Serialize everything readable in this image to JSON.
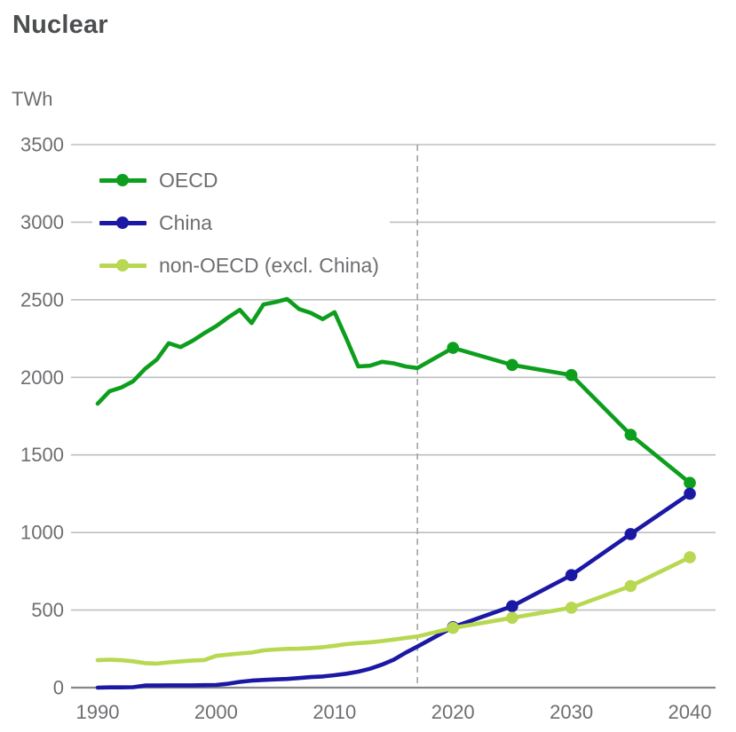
{
  "page": {
    "title": "Nuclear",
    "unit": "TWh"
  },
  "colors": {
    "oecd_green": "#0d9e1d",
    "china_blue": "#1b18a4",
    "non_oecd_light_green": "#b7d850",
    "grid_gray": "#bdbfc1",
    "axis_gray": "#85878a",
    "divider_gray": "#a0a2a5",
    "text_gray": "#6d6e71",
    "title_gray": "#4d4e50"
  },
  "chart_data": {
    "type": "line",
    "title": "Nuclear",
    "ylabel": "TWh",
    "xlabel": "",
    "xlim": [
      1990,
      2040
    ],
    "ylim": [
      0,
      3500
    ],
    "grid": true,
    "legend_position": "top-left",
    "yticks": [
      0,
      500,
      1000,
      1500,
      2000,
      2500,
      3000,
      3500
    ],
    "xticks": [
      1990,
      2000,
      2010,
      2020,
      2030,
      2040
    ],
    "divider_x": 2017,
    "x": [
      1990,
      1991,
      1992,
      1993,
      1994,
      1995,
      1996,
      1997,
      1998,
      1999,
      2000,
      2001,
      2002,
      2003,
      2004,
      2005,
      2006,
      2007,
      2008,
      2009,
      2010,
      2011,
      2012,
      2013,
      2014,
      2015,
      2016,
      2017,
      2020,
      2025,
      2030,
      2035,
      2040
    ],
    "marker_x": [
      2020,
      2025,
      2030,
      2035,
      2040
    ],
    "series": [
      {
        "name": "OECD",
        "color": "#0d9e1d",
        "values": [
          1830,
          1910,
          1935,
          1975,
          2055,
          2115,
          2220,
          2195,
          2235,
          2285,
          2330,
          2385,
          2435,
          2350,
          2470,
          2485,
          2505,
          2440,
          2415,
          2375,
          2420,
          2250,
          2070,
          2075,
          2100,
          2090,
          2070,
          2060,
          2190,
          2080,
          2015,
          1630,
          1320
        ]
      },
      {
        "name": "China",
        "color": "#1b18a4",
        "values": [
          0,
          2,
          2,
          3,
          14,
          14,
          15,
          15,
          15,
          16,
          17,
          25,
          37,
          45,
          50,
          53,
          56,
          62,
          68,
          72,
          80,
          90,
          103,
          122,
          148,
          180,
          225,
          265,
          390,
          525,
          725,
          990,
          1250
        ]
      },
      {
        "name": "non-OECD (excl. China)",
        "color": "#b7d850",
        "values": [
          177,
          180,
          177,
          170,
          158,
          155,
          163,
          169,
          175,
          178,
          205,
          213,
          220,
          226,
          240,
          246,
          250,
          251,
          255,
          261,
          270,
          280,
          287,
          292,
          300,
          310,
          320,
          330,
          385,
          450,
          515,
          655,
          840
        ]
      }
    ]
  }
}
